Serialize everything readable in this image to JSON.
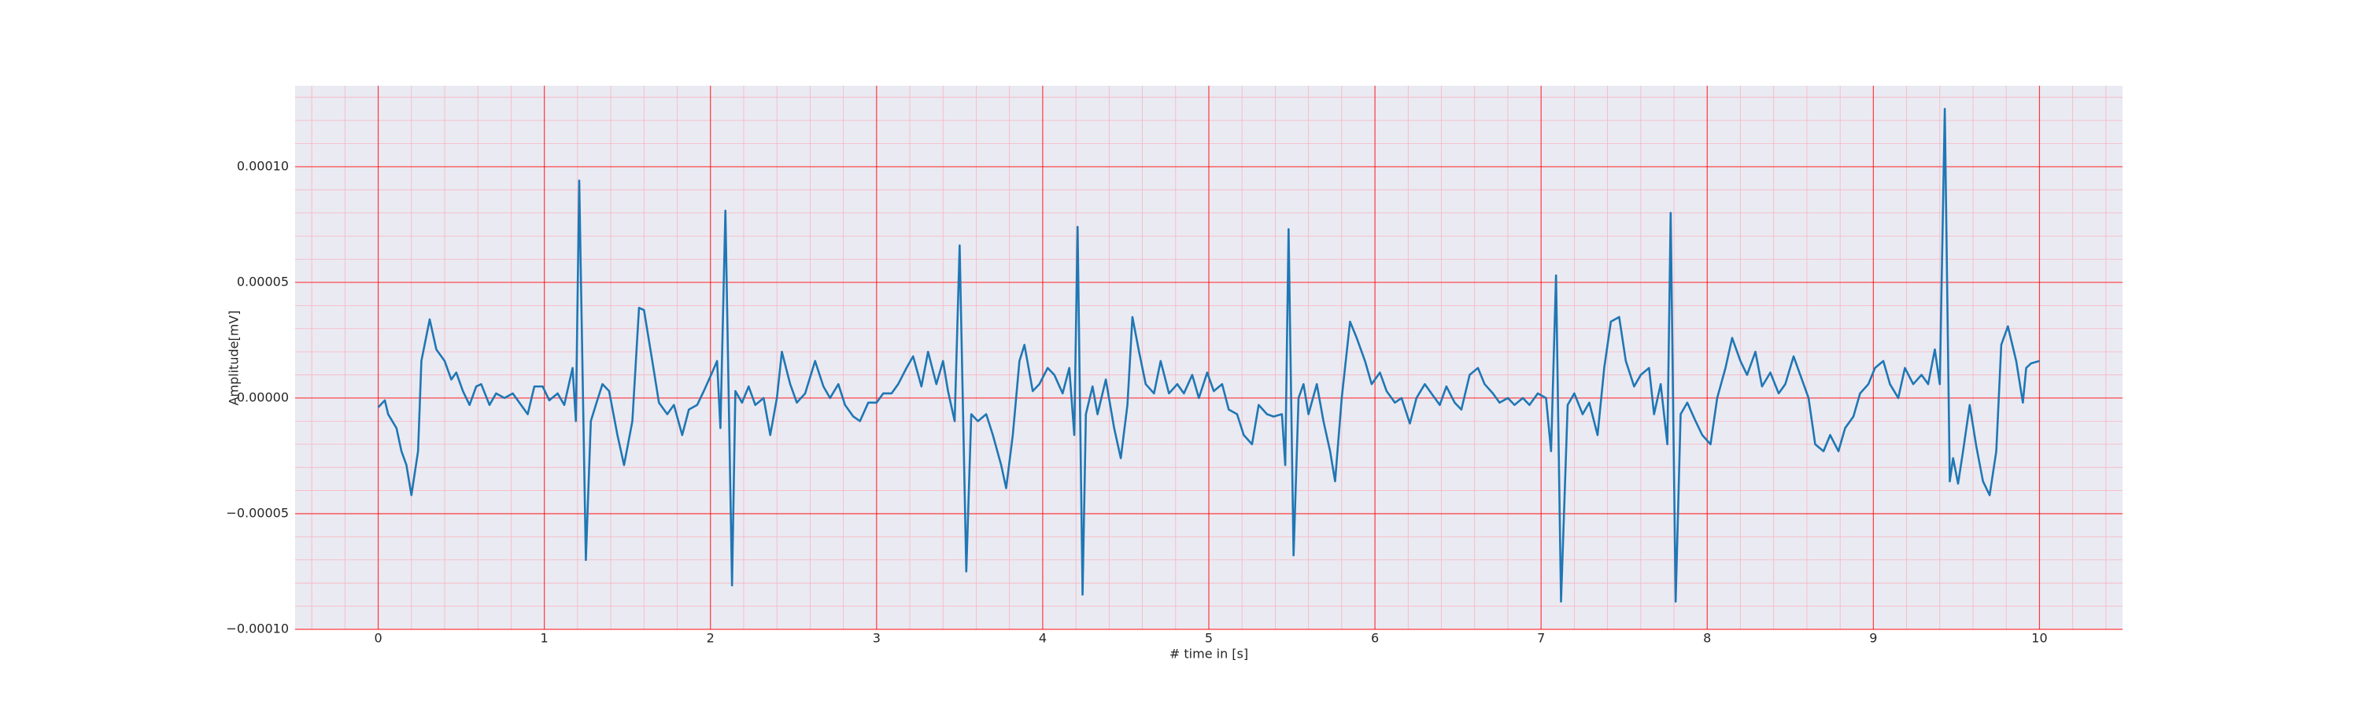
{
  "chart_data": {
    "type": "line",
    "xlabel": "# time in [s]",
    "ylabel": "Amplitude[mV]",
    "color": "#1f77b4",
    "background": "#eaeaf2",
    "grid": true,
    "grid_color": "#ff0000",
    "minor_grid": true,
    "minor_grid_color": "#f7b5c0",
    "xlim": [
      -0.5,
      10.5
    ],
    "xticks": [
      0,
      1,
      2,
      3,
      4,
      5,
      6,
      7,
      8,
      9,
      10
    ],
    "ylim": [
      -0.0001,
      0.000135
    ],
    "yticks": [
      {
        "value": -0.0001,
        "label": "−0.00010"
      },
      {
        "value": -5e-05,
        "label": "−0.00005"
      },
      {
        "value": 0,
        "label": "0.00000"
      },
      {
        "value": 5e-05,
        "label": "0.00005"
      },
      {
        "value": 0.0001,
        "label": "0.00010"
      }
    ],
    "x": [
      0,
      0.04,
      0.06,
      0.11,
      0.14,
      0.17,
      0.2,
      0.24,
      0.26,
      0.31,
      0.35,
      0.4,
      0.44,
      0.47,
      0.51,
      0.55,
      0.59,
      0.62,
      0.67,
      0.71,
      0.76,
      0.81,
      0.85,
      0.9,
      0.94,
      0.99,
      1.03,
      1.08,
      1.12,
      1.17,
      1.19,
      1.21,
      1.25,
      1.28,
      1.31,
      1.35,
      1.39,
      1.44,
      1.48,
      1.53,
      1.57,
      1.6,
      1.65,
      1.69,
      1.74,
      1.78,
      1.83,
      1.87,
      1.92,
      1.96,
      2.01,
      2.04,
      2.06,
      2.09,
      2.13,
      2.15,
      2.19,
      2.23,
      2.27,
      2.32,
      2.36,
      2.4,
      2.43,
      2.48,
      2.52,
      2.57,
      2.63,
      2.68,
      2.72,
      2.77,
      2.81,
      2.86,
      2.9,
      2.95,
      3.0,
      3.04,
      3.09,
      3.13,
      3.18,
      3.22,
      3.27,
      3.31,
      3.36,
      3.4,
      3.43,
      3.47,
      3.5,
      3.54,
      3.57,
      3.61,
      3.66,
      3.7,
      3.75,
      3.78,
      3.82,
      3.86,
      3.89,
      3.94,
      3.98,
      4.03,
      4.07,
      4.12,
      4.16,
      4.19,
      4.21,
      4.24,
      4.26,
      4.3,
      4.33,
      4.38,
      4.43,
      4.47,
      4.51,
      4.54,
      4.58,
      4.62,
      4.67,
      4.71,
      4.76,
      4.81,
      4.85,
      4.9,
      4.94,
      4.99,
      5.03,
      5.08,
      5.12,
      5.17,
      5.21,
      5.26,
      5.3,
      5.35,
      5.39,
      5.44,
      5.46,
      5.48,
      5.51,
      5.54,
      5.57,
      5.6,
      5.65,
      5.69,
      5.73,
      5.76,
      5.8,
      5.85,
      5.89,
      5.94,
      5.98,
      6.03,
      6.07,
      6.12,
      6.16,
      6.21,
      6.25,
      6.3,
      6.34,
      6.39,
      6.43,
      6.48,
      6.52,
      6.57,
      6.62,
      6.66,
      6.71,
      6.75,
      6.8,
      6.84,
      6.89,
      6.93,
      6.98,
      7.03,
      7.06,
      7.09,
      7.12,
      7.16,
      7.2,
      7.25,
      7.29,
      7.34,
      7.38,
      7.42,
      7.47,
      7.51,
      7.56,
      7.6,
      7.65,
      7.68,
      7.72,
      7.76,
      7.78,
      7.81,
      7.84,
      7.88,
      7.93,
      7.97,
      8.02,
      8.06,
      8.11,
      8.15,
      8.2,
      8.24,
      8.29,
      8.33,
      8.38,
      8.43,
      8.47,
      8.52,
      8.56,
      8.61,
      8.65,
      8.7,
      8.74,
      8.79,
      8.83,
      8.88,
      8.92,
      8.97,
      9.01,
      9.06,
      9.1,
      9.15,
      9.19,
      9.24,
      9.29,
      9.33,
      9.37,
      9.4,
      9.43,
      9.46,
      9.48,
      9.51,
      9.54,
      9.58,
      9.62,
      9.66,
      9.7,
      9.74,
      9.77,
      9.81,
      9.86,
      9.9,
      9.92,
      9.95,
      10.0
    ],
    "values": [
      -4e-06,
      -1e-06,
      -7e-06,
      -1.3e-05,
      -2.3e-05,
      -2.9e-05,
      -4.2e-05,
      -2.3e-05,
      1.6e-05,
      3.4e-05,
      2.1e-05,
      1.6e-05,
      8e-06,
      1.1e-05,
      3e-06,
      -3e-06,
      5e-06,
      6e-06,
      -3e-06,
      2e-06,
      0,
      2e-06,
      -2e-06,
      -7e-06,
      5e-06,
      5e-06,
      -1e-06,
      2e-06,
      -3e-06,
      1.3e-05,
      -1e-05,
      9.4e-05,
      -7e-05,
      -1e-05,
      -3e-06,
      6e-06,
      3e-06,
      -1.6e-05,
      -2.9e-05,
      -1e-05,
      3.9e-05,
      3.8e-05,
      1.6e-05,
      -2e-06,
      -7e-06,
      -3e-06,
      -1.6e-05,
      -5e-06,
      -3e-06,
      3e-06,
      1.1e-05,
      1.6e-05,
      -1.3e-05,
      8.1e-05,
      -8.1e-05,
      3e-06,
      -2e-06,
      5e-06,
      -3e-06,
      0,
      -1.6e-05,
      0,
      2e-05,
      6e-06,
      -2e-06,
      2e-06,
      1.6e-05,
      5e-06,
      0,
      6e-06,
      -3e-06,
      -8e-06,
      -1e-05,
      -2e-06,
      -2e-06,
      2e-06,
      2e-06,
      6e-06,
      1.3e-05,
      1.8e-05,
      5e-06,
      2e-05,
      6e-06,
      1.6e-05,
      3e-06,
      -1e-05,
      6.6e-05,
      -7.5e-05,
      -7e-06,
      -1e-05,
      -7e-06,
      -1.6e-05,
      -2.9e-05,
      -3.9e-05,
      -1.6e-05,
      1.6e-05,
      2.3e-05,
      3e-06,
      6e-06,
      1.3e-05,
      1e-05,
      2e-06,
      1.3e-05,
      -1.6e-05,
      7.4e-05,
      -8.5e-05,
      -7e-06,
      5e-06,
      -7e-06,
      8e-06,
      -1.3e-05,
      -2.6e-05,
      -3e-06,
      3.5e-05,
      2e-05,
      6e-06,
      2e-06,
      1.6e-05,
      2e-06,
      6e-06,
      2e-06,
      1e-05,
      0,
      1.1e-05,
      3e-06,
      6e-06,
      -5e-06,
      -7e-06,
      -1.6e-05,
      -2e-05,
      -3e-06,
      -7e-06,
      -8e-06,
      -7e-06,
      -2.9e-05,
      7.3e-05,
      -6.8e-05,
      0,
      6e-06,
      -7e-06,
      6e-06,
      -1e-05,
      -2.3e-05,
      -3.6e-05,
      0,
      3.3e-05,
      2.6e-05,
      1.6e-05,
      6e-06,
      1.1e-05,
      3e-06,
      -2e-06,
      0,
      -1.1e-05,
      0,
      6e-06,
      2e-06,
      -3e-06,
      5e-06,
      -2e-06,
      -5e-06,
      1e-05,
      1.3e-05,
      6e-06,
      2e-06,
      -2e-06,
      0,
      -3e-06,
      0,
      -3e-06,
      2e-06,
      0,
      -2.3e-05,
      5.3e-05,
      -8.8e-05,
      -3e-06,
      2e-06,
      -7e-06,
      -2e-06,
      -1.6e-05,
      1.3e-05,
      3.3e-05,
      3.5e-05,
      1.6e-05,
      5e-06,
      1e-05,
      1.3e-05,
      -7e-06,
      6e-06,
      -2e-05,
      8e-05,
      -8.8e-05,
      -7e-06,
      -2e-06,
      -1e-05,
      -1.6e-05,
      -2e-05,
      0,
      1.3e-05,
      2.6e-05,
      1.6e-05,
      1e-05,
      2e-05,
      5e-06,
      1.1e-05,
      2e-06,
      6e-06,
      1.8e-05,
      1e-05,
      0,
      -2e-05,
      -2.3e-05,
      -1.6e-05,
      -2.3e-05,
      -1.3e-05,
      -8e-06,
      2e-06,
      6e-06,
      1.3e-05,
      1.6e-05,
      6e-06,
      0,
      1.3e-05,
      6e-06,
      1e-05,
      6e-06,
      2.1e-05,
      6e-06,
      0.000125,
      -3.6e-05,
      -2.6e-05,
      -3.7e-05,
      -2.3e-05,
      -3e-06,
      -2.1e-05,
      -3.6e-05,
      -4.2e-05,
      -2.3e-05,
      2.3e-05,
      3.1e-05,
      1.6e-05,
      -2e-06,
      1.3e-05,
      1.5e-05,
      1.6e-05
    ]
  }
}
